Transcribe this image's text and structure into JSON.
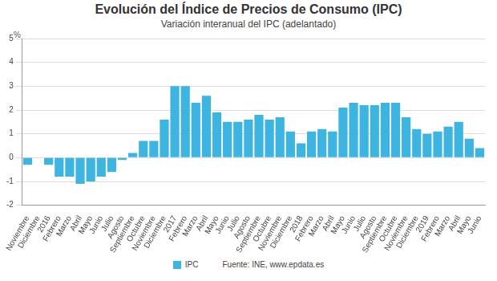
{
  "chart_data": {
    "type": "bar",
    "title": "Evolución del Índice de Precios de Consumo (IPC)",
    "subtitle": "Variación interanual del IPC (adelantado)",
    "y_label": "%",
    "source": "Fuente: INE, www.epdata.es",
    "categories": [
      "Noviembre",
      "Diciembre",
      "2016",
      "Febrero",
      "Marzo",
      "Abril",
      "Mayo",
      "Junio",
      "Julio",
      "Agosto",
      "Septiembre",
      "Octubre",
      "Noviembre",
      "Diciembre",
      "2017",
      "Febrero",
      "Marzo",
      "Abril",
      "Mayo",
      "Junio",
      "Julio",
      "Agosto",
      "Septiembre",
      "Octubre",
      "Noviembre",
      "Diciembre",
      "2018",
      "Febrero",
      "Marzo",
      "Abril",
      "Mayo",
      "Junio",
      "Julio",
      "Agosto",
      "Septiembre",
      "Octubre",
      "Noviembre",
      "Diciembre",
      "2019",
      "Febrero",
      "Marzo",
      "Abril",
      "Mayo",
      "Junio"
    ],
    "series": [
      {
        "name": "IPC",
        "color": "#3db5e0",
        "values": [
          -0.3,
          0.0,
          -0.3,
          -0.8,
          -0.8,
          -1.1,
          -1.0,
          -0.8,
          -0.6,
          -0.1,
          0.2,
          0.7,
          0.7,
          1.6,
          3.0,
          3.0,
          2.3,
          2.6,
          1.9,
          1.5,
          1.5,
          1.6,
          1.8,
          1.6,
          1.7,
          1.1,
          0.6,
          1.1,
          1.2,
          1.1,
          2.1,
          2.3,
          2.2,
          2.2,
          2.3,
          2.3,
          1.7,
          1.2,
          1.0,
          1.1,
          1.3,
          1.5,
          0.8,
          0.4
        ]
      }
    ],
    "ylim": [
      -2,
      5
    ],
    "yticks": [
      -2,
      -1,
      0,
      1,
      2,
      3,
      4,
      5
    ],
    "grid": true,
    "legend": "bottom"
  }
}
